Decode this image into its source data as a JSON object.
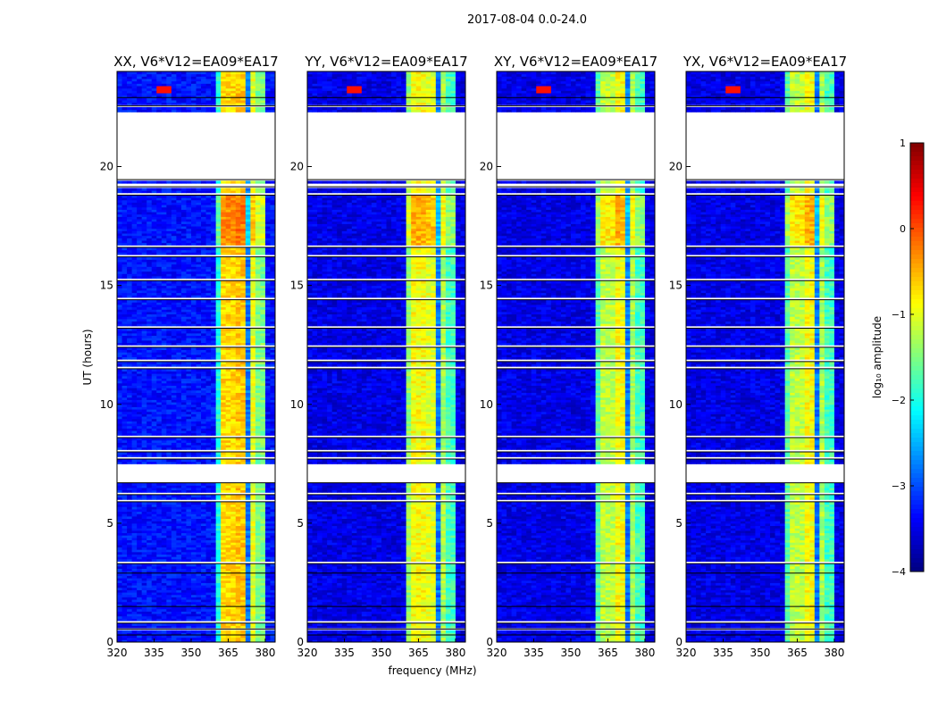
{
  "chart_data": {
    "type": "heatmap",
    "suptitle": "2017-08-04 0.0-24.0",
    "xlabel": "frequency (MHz)",
    "ylabel": "UT (hours)",
    "xlim": [
      320,
      384
    ],
    "ylim": [
      0,
      24
    ],
    "xticks": [
      "320",
      "335",
      "350",
      "365",
      "380"
    ],
    "xtick_values": [
      320,
      335,
      350,
      365,
      380
    ],
    "yticks": [
      "0",
      "5",
      "10",
      "15",
      "20"
    ],
    "ytick_values": [
      0,
      5,
      10,
      15,
      20
    ],
    "panels": [
      {
        "title": "XX, V6*V12=EA09*EA17",
        "background": -3.3,
        "band": [
          [
            360.5,
            363,
            -2.0
          ],
          [
            363,
            368,
            -0.7
          ],
          [
            368,
            369,
            -2.8
          ],
          [
            369,
            373,
            -0.6
          ],
          [
            373,
            374,
            -2.8
          ],
          [
            374,
            377,
            -1.0
          ],
          [
            377,
            380,
            -1.5
          ]
        ]
      },
      {
        "title": "YY, V6*V12=EA09*EA17",
        "background": -3.5,
        "band": [
          [
            360.5,
            363,
            -1.4
          ],
          [
            363,
            368,
            -0.9
          ],
          [
            368,
            369,
            -2.8
          ],
          [
            369,
            373,
            -1.0
          ],
          [
            373,
            374,
            -2.8
          ],
          [
            374,
            377,
            -1.3
          ],
          [
            377,
            380,
            -1.8
          ]
        ]
      },
      {
        "title": "XY, V6*V12=EA09*EA17",
        "background": -3.5,
        "band": [
          [
            360.5,
            363,
            -1.7
          ],
          [
            363,
            368,
            -1.2
          ],
          [
            368,
            369,
            -2.8
          ],
          [
            369,
            373,
            -0.9
          ],
          [
            373,
            374,
            -2.8
          ],
          [
            374,
            377,
            -1.3
          ],
          [
            377,
            380,
            -1.8
          ]
        ]
      },
      {
        "title": "YX, V6*V12=EA09*EA17",
        "background": -3.5,
        "band": [
          [
            360.5,
            363,
            -1.7
          ],
          [
            363,
            368,
            -1.2
          ],
          [
            368,
            369,
            -2.8
          ],
          [
            369,
            373,
            -0.9
          ],
          [
            373,
            374,
            -2.8
          ],
          [
            374,
            377,
            -1.3
          ],
          [
            377,
            380,
            -1.8
          ]
        ]
      }
    ],
    "flagged_hours": [
      [
        0.3,
        0.35
      ],
      [
        0.55,
        0.6
      ],
      [
        0.8,
        0.95
      ],
      [
        1.5,
        1.55
      ],
      [
        2.9,
        2.95
      ],
      [
        3.3,
        3.4
      ],
      [
        5.9,
        6.0
      ],
      [
        6.2,
        6.25
      ],
      [
        6.7,
        7.5
      ],
      [
        7.7,
        7.8
      ],
      [
        8.0,
        8.05
      ],
      [
        8.6,
        8.65
      ],
      [
        11.5,
        11.6
      ],
      [
        11.8,
        11.85
      ],
      [
        12.4,
        12.45
      ],
      [
        13.2,
        13.25
      ],
      [
        14.4,
        14.45
      ],
      [
        15.2,
        15.25
      ],
      [
        16.2,
        16.3
      ],
      [
        16.6,
        16.65
      ],
      [
        18.8,
        18.9
      ],
      [
        19.15,
        19.3
      ],
      [
        19.45,
        22.35
      ],
      [
        22.55,
        22.6
      ],
      [
        22.9,
        22.95
      ]
    ],
    "hot_spot": {
      "freq": 339,
      "time": 23.2,
      "value": 0.3
    },
    "colorbar": {
      "label": "log₁₀ amplitude",
      "range": [
        -4,
        1
      ],
      "ticks": [
        "1",
        "0",
        "−1",
        "−2",
        "−3",
        "−4"
      ],
      "tick_values": [
        1,
        0,
        -1,
        -2,
        -3,
        -4
      ],
      "colormap": "jet"
    }
  }
}
